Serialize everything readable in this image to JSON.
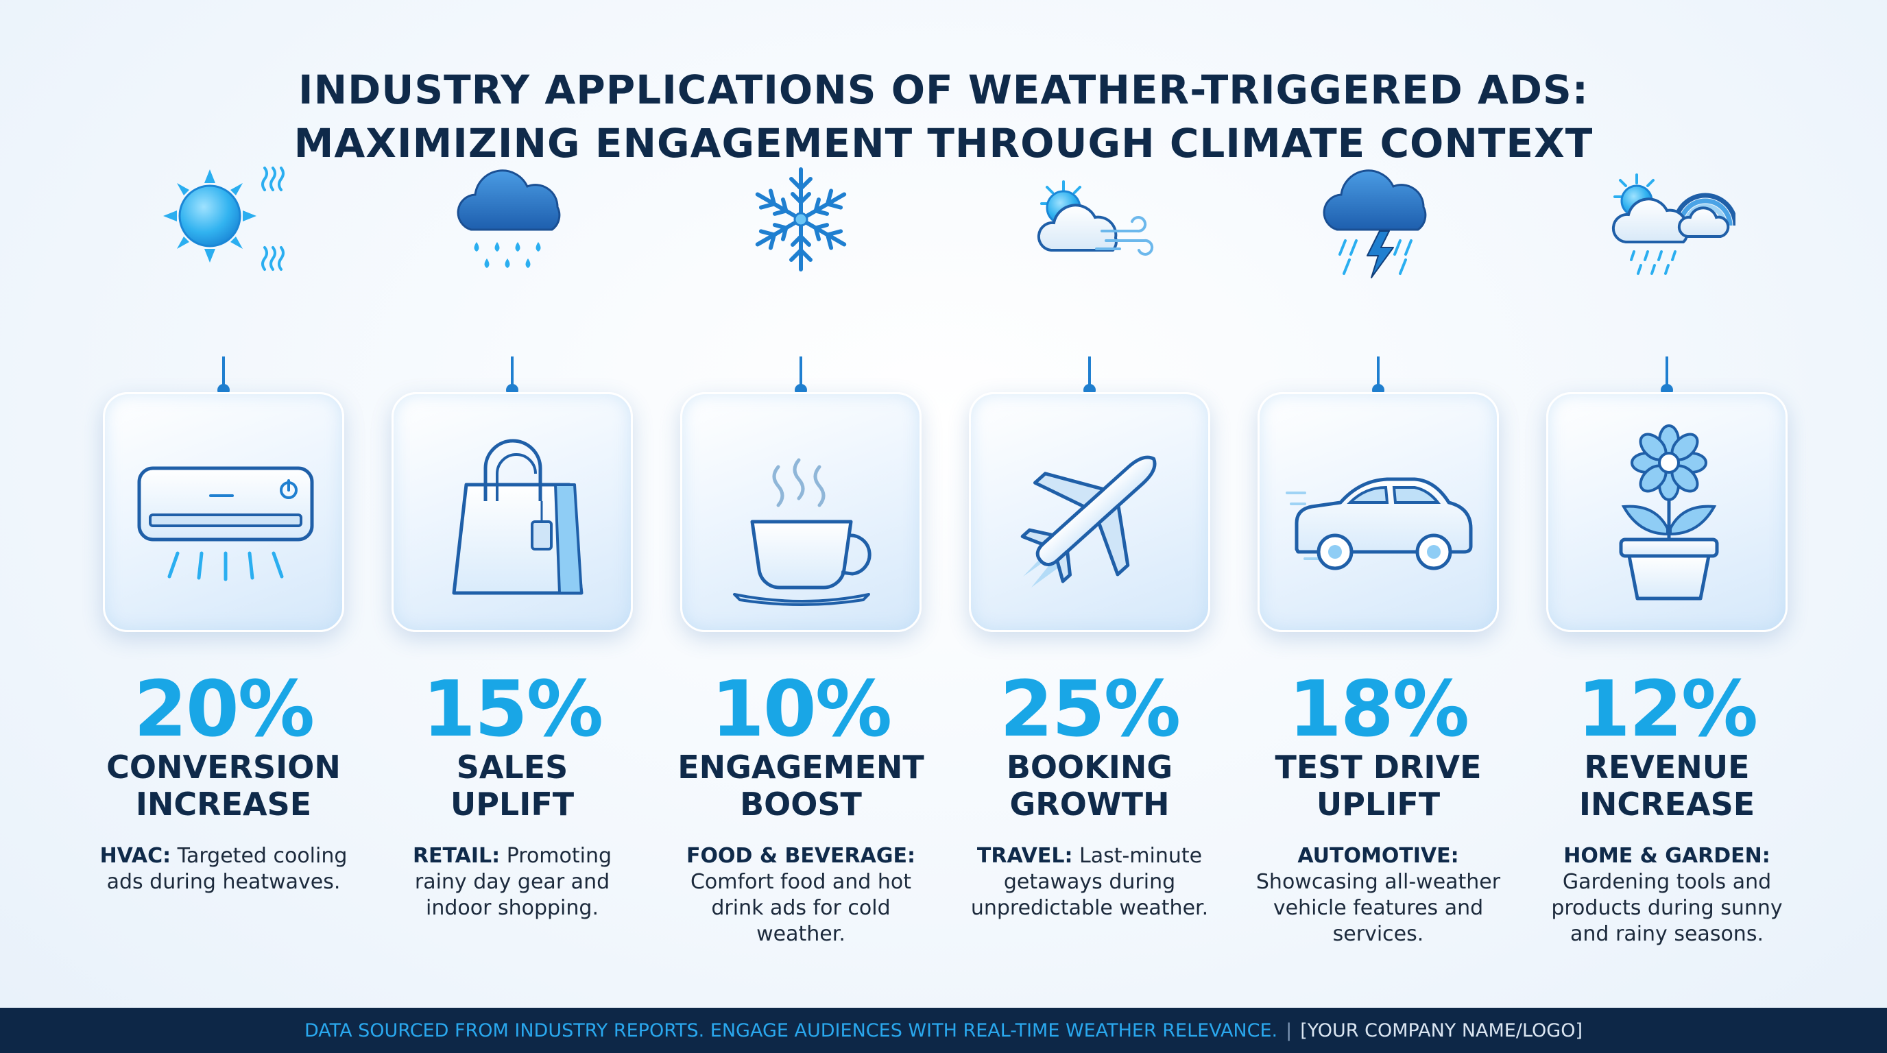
{
  "title": {
    "line1": "INDUSTRY APPLICATIONS OF WEATHER-TRIGGERED ADS:",
    "line2": "MAXIMIZING ENGAGEMENT THROUGH CLIMATE CONTEXT"
  },
  "colors": {
    "accent": "#19a6e6",
    "title": "#0f2a4a",
    "connector": "#1f7fd0",
    "footer_bg": "#0d2747",
    "footer_text": "#2aa8ee"
  },
  "industries": [
    {
      "weather_icon": "sun-heat-icon",
      "industry_icon": "air-conditioner-icon",
      "percent": "20%",
      "label_line1": "CONVERSION",
      "label_line2": "INCREASE",
      "desc_bold": "HVAC:",
      "desc_line1": " Targeted cooling",
      "desc_line2": "ads during heatwaves.",
      "desc_line3": "",
      "desc_line4": ""
    },
    {
      "weather_icon": "rain-cloud-icon",
      "industry_icon": "shopping-bag-icon",
      "percent": "15%",
      "label_line1": "SALES",
      "label_line2": "UPLIFT",
      "desc_bold": "RETAIL:",
      "desc_line1": " Promoting",
      "desc_line2": "rainy day gear and",
      "desc_line3": "indoor shopping.",
      "desc_line4": ""
    },
    {
      "weather_icon": "snowflake-icon",
      "industry_icon": "hot-drink-cup-icon",
      "percent": "10%",
      "label_line1": "ENGAGEMENT",
      "label_line2": "BOOST",
      "desc_bold": "FOOD & BEVERAGE:",
      "desc_line1": "",
      "desc_line2": "Comfort food and hot",
      "desc_line3": "drink ads for cold",
      "desc_line4": "weather."
    },
    {
      "weather_icon": "sun-cloud-wind-icon",
      "industry_icon": "airplane-icon",
      "percent": "25%",
      "label_line1": "BOOKING",
      "label_line2": "GROWTH",
      "desc_bold": "TRAVEL:",
      "desc_line1": " Last-minute",
      "desc_line2": "getaways during",
      "desc_line3": "unpredictable weather.",
      "desc_line4": ""
    },
    {
      "weather_icon": "thunderstorm-icon",
      "industry_icon": "car-icon",
      "percent": "18%",
      "label_line1": "TEST DRIVE",
      "label_line2": "UPLIFT",
      "desc_bold": "AUTOMOTIVE:",
      "desc_line1": "",
      "desc_line2": "Showcasing all-weather",
      "desc_line3": "vehicle features and",
      "desc_line4": "services."
    },
    {
      "weather_icon": "sun-rain-rainbow-icon",
      "industry_icon": "potted-flower-icon",
      "percent": "12%",
      "label_line1": "REVENUE",
      "label_line2": "INCREASE",
      "desc_bold": "HOME & GARDEN:",
      "desc_line1": "",
      "desc_line2": "Gardening tools and",
      "desc_line3": "products during sunny",
      "desc_line4": "and rainy seasons."
    }
  ],
  "footer": {
    "source": "DATA SOURCED FROM INDUSTRY REPORTS. ENGAGE AUDIENCES WITH REAL-TIME WEATHER RELEVANCE.",
    "separator": "|",
    "brand": "[YOUR COMPANY NAME/LOGO]"
  }
}
